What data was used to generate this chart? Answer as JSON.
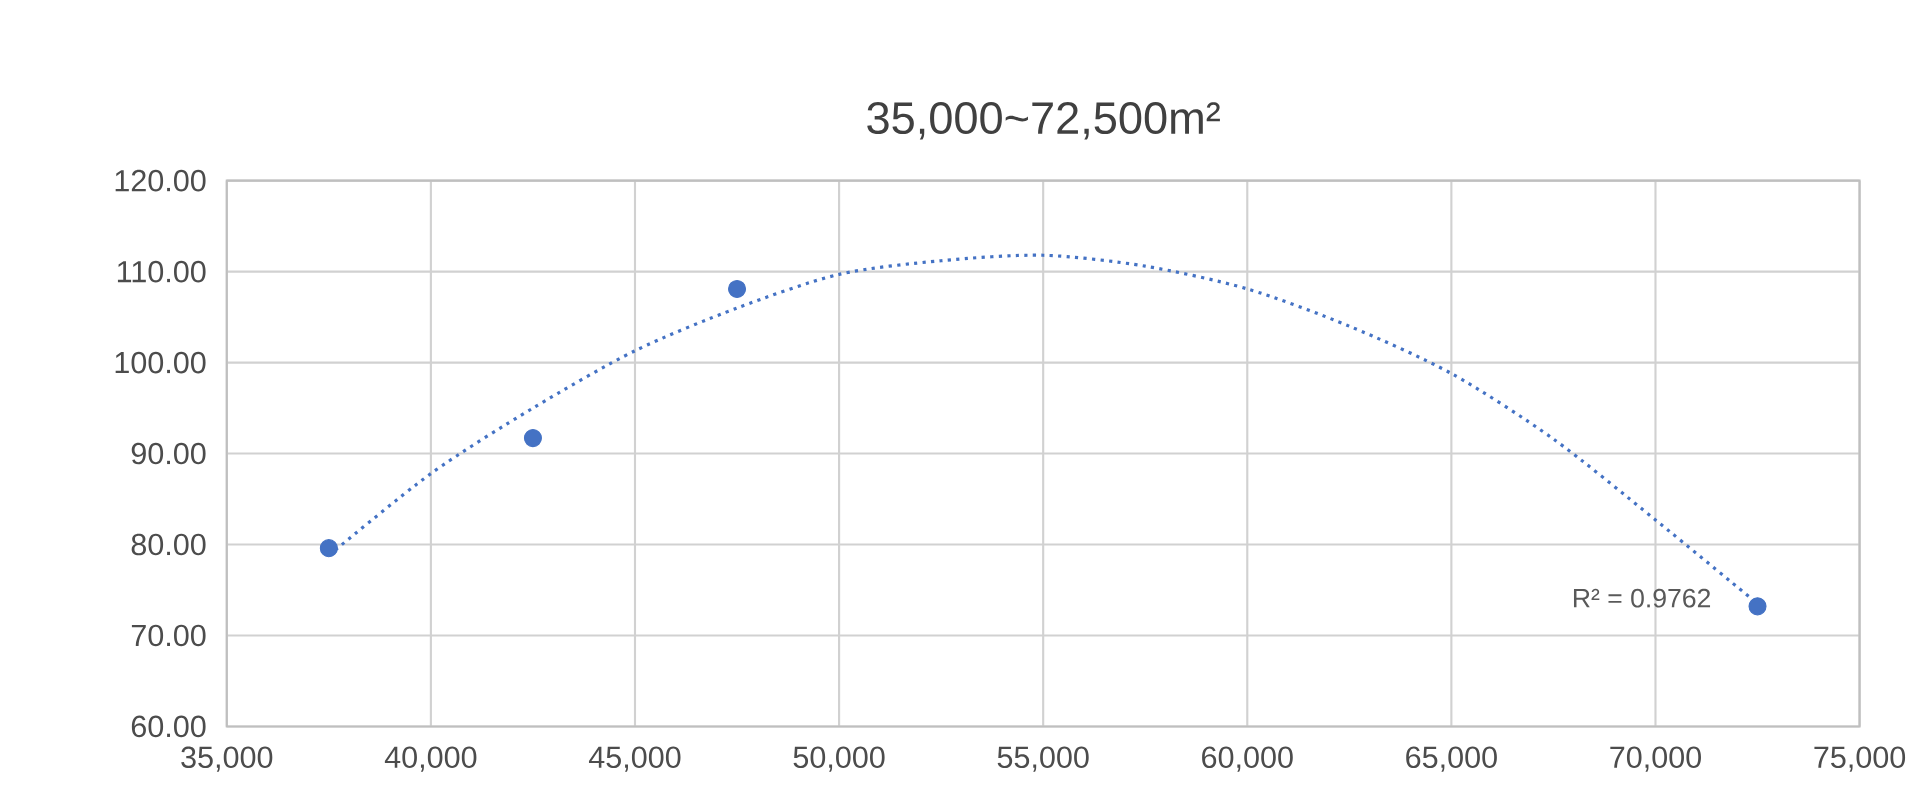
{
  "chart_data": {
    "type": "scatter",
    "title": "35,000~72,500m²",
    "series": [
      {
        "color": "#4472c4",
        "marker": "circle",
        "x": [
          37500,
          42500,
          47500,
          72500
        ],
        "values": [
          79.6,
          91.7,
          108.1,
          73.2
        ]
      },
      {
        "type": "line",
        "color": "#4472c4",
        "line_style": "dotted",
        "marker": "none",
        "x": [
          37500,
          40000,
          42500,
          45000,
          47500,
          50000,
          52500,
          55000,
          57500,
          60000,
          62500,
          65000,
          67500,
          70000,
          72500
        ],
        "values": [
          78.8,
          87.8,
          95.0,
          101.3,
          106.0,
          109.7,
          111.2,
          111.8,
          110.6,
          108.1,
          104.0,
          98.8,
          91.6,
          82.7,
          73.5
        ]
      }
    ],
    "annotations": [
      "R² = 0.9762"
    ],
    "xlim": [
      35000,
      75000
    ],
    "xticks": [
      {
        "value": 35000,
        "label": "35,000"
      },
      {
        "value": 40000,
        "label": "40,000"
      },
      {
        "value": 45000,
        "label": "45,000"
      },
      {
        "value": 50000,
        "label": "50,000"
      },
      {
        "value": 55000,
        "label": "55,000"
      },
      {
        "value": 60000,
        "label": "60,000"
      },
      {
        "value": 65000,
        "label": "65,000"
      },
      {
        "value": 70000,
        "label": "70,000"
      },
      {
        "value": 75000,
        "label": "75,000"
      }
    ],
    "ylim": [
      60,
      120
    ],
    "yticks": [
      {
        "value": 60,
        "label": "60.00"
      },
      {
        "value": 70,
        "label": "70.00"
      },
      {
        "value": 80,
        "label": "80.00"
      },
      {
        "value": 90,
        "label": "90.00"
      },
      {
        "value": 100,
        "label": "100.00"
      },
      {
        "value": 110,
        "label": "110.00"
      },
      {
        "value": 120,
        "label": "120.00"
      }
    ],
    "grid": true
  }
}
